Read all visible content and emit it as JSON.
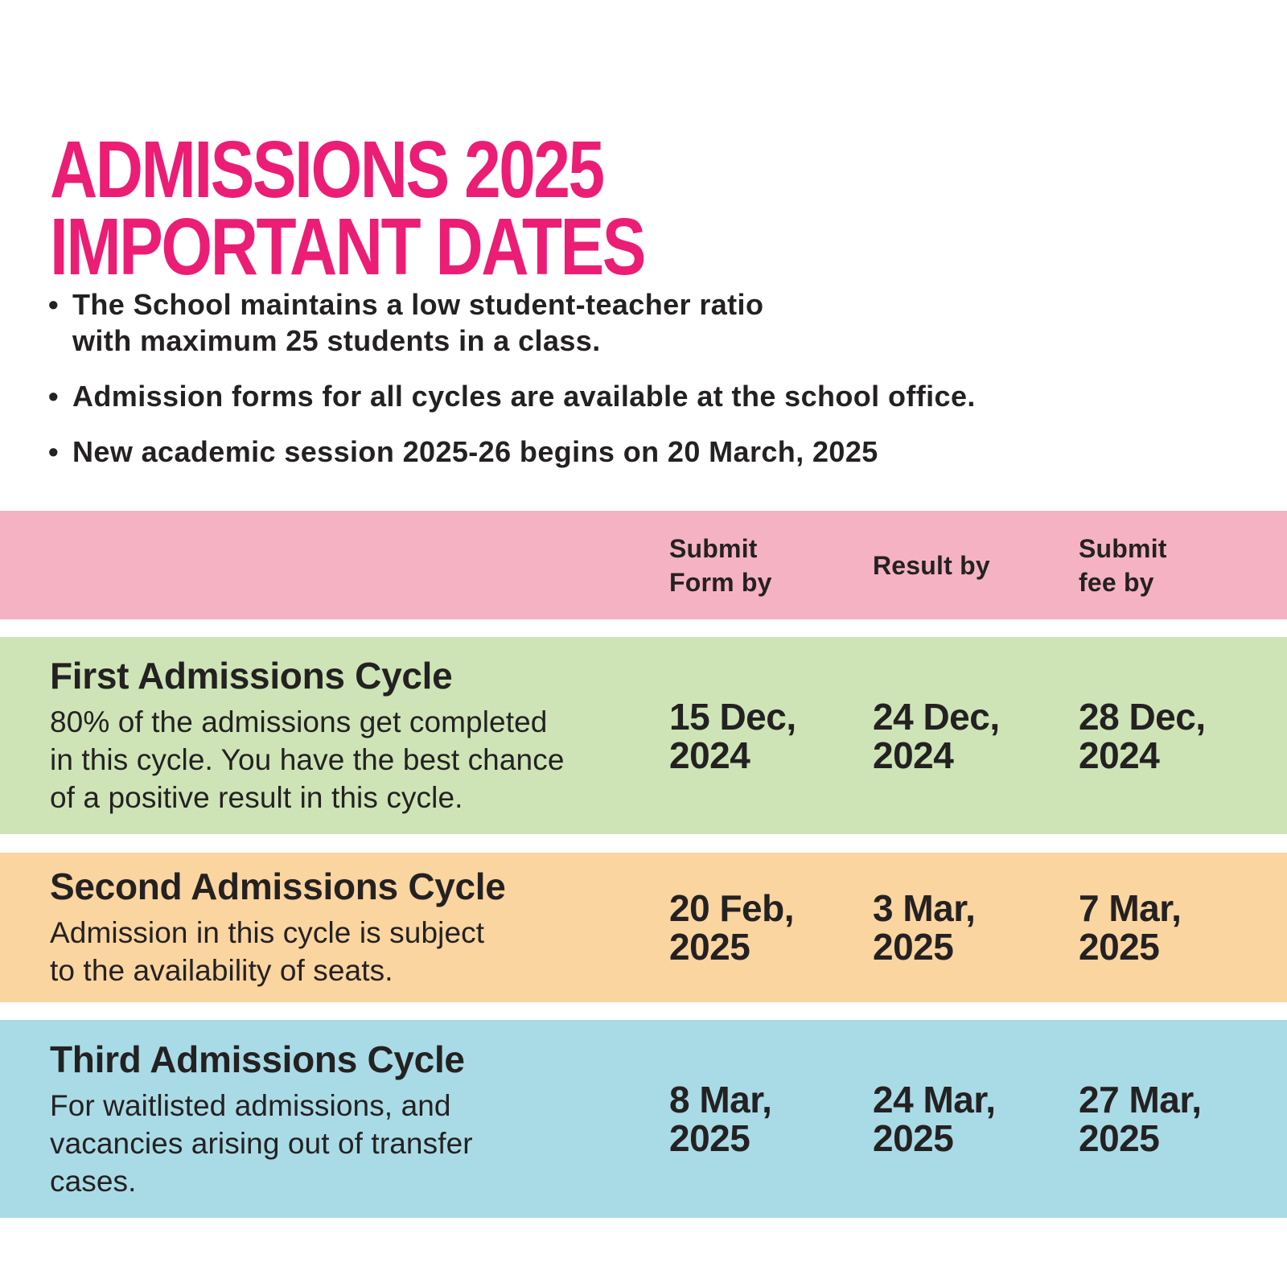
{
  "page": {
    "title_line1": "ADMISSIONS 2025",
    "title_line2": "IMPORTANT DATES",
    "title_color": "#EB1D74",
    "text_color": "#242122"
  },
  "bullets": {
    "marker": "•",
    "items": [
      "The School maintains a low student-teacher ratio\nwith maximum 25 students in a class.",
      "Admission forms for all cycles are available at the school office.",
      "New academic session 2025-26 begins on 20 March, 2025"
    ]
  },
  "table": {
    "header": {
      "bg_color": "#F5B2C3",
      "submit_form_label": "Submit\nForm by",
      "result_label": "Result by",
      "submit_fee_label": "Submit\nfee by"
    },
    "rows": [
      {
        "bg_color": "#CEE4B6",
        "title": "First Admissions Cycle",
        "description": "80% of the admissions get completed\nin this cycle. You have the best chance\nof a positive result in this cycle.",
        "submit_form_by": "15 Dec,\n2024",
        "result_by": "24 Dec,\n2024",
        "submit_fee_by": "28 Dec,\n2024"
      },
      {
        "bg_color": "#FBD5A0",
        "title": "Second Admissions Cycle",
        "description": "Admission in this cycle is subject\nto the availability of seats.",
        "submit_form_by": "20 Feb,\n2025",
        "result_by": "3 Mar,\n2025",
        "submit_fee_by": "7 Mar,\n2025"
      },
      {
        "bg_color": "#A9DBE6",
        "title": "Third Admissions Cycle",
        "description": "For waitlisted admissions, and\nvacancies arising out of transfer\ncases.",
        "submit_form_by": "8 Mar,\n2025",
        "result_by": "24 Mar,\n2025",
        "submit_fee_by": "27 Mar,\n2025"
      }
    ]
  }
}
